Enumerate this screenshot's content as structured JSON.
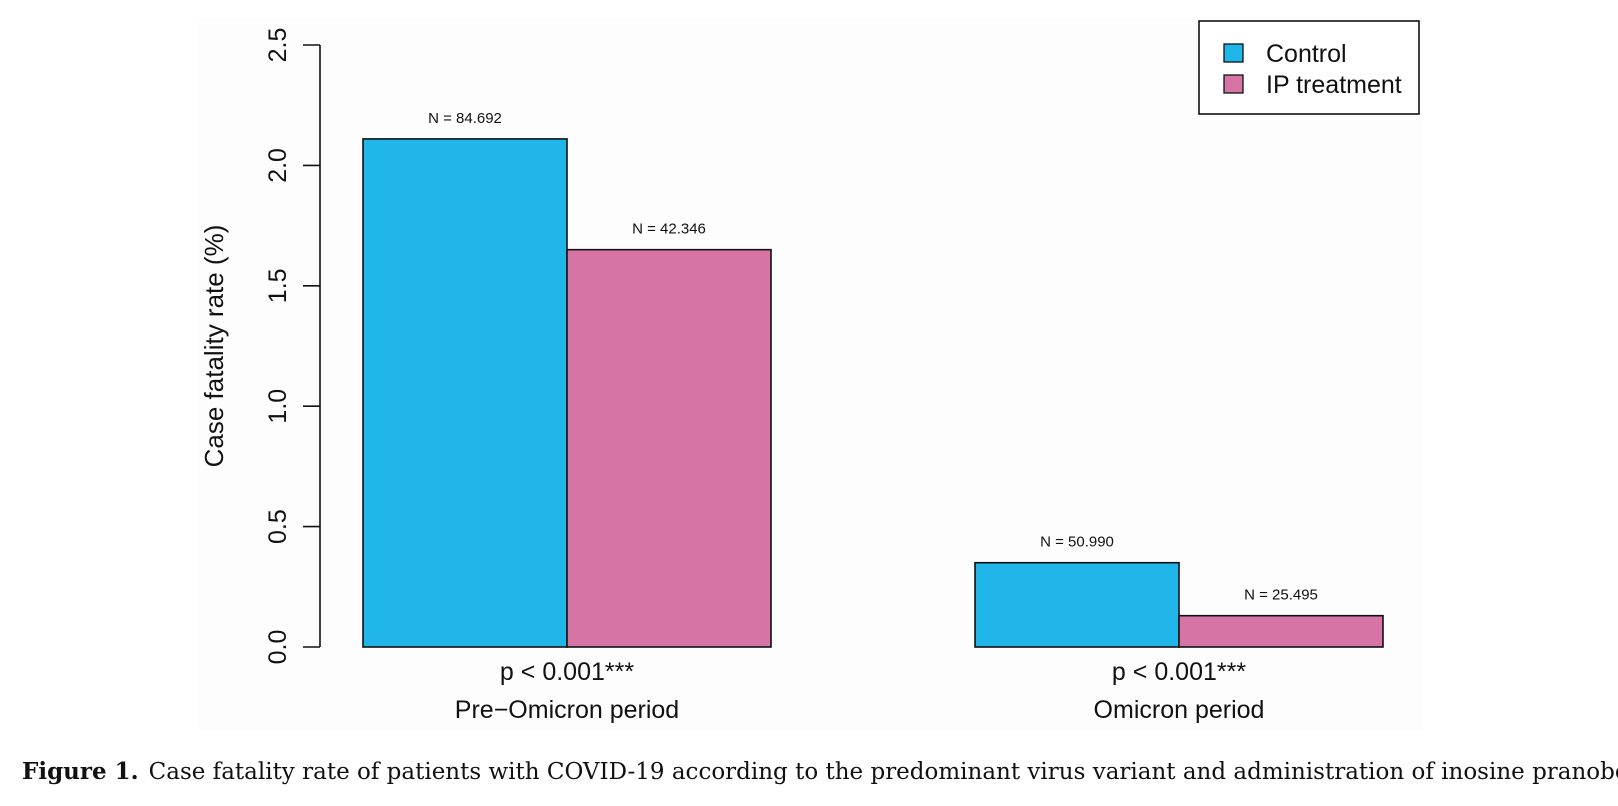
{
  "chart_data": {
    "type": "bar",
    "title": "",
    "xlabel": "",
    "ylabel": "Case fatality rate (%)",
    "ylim": [
      0,
      2.5
    ],
    "yticks": [
      "0.0",
      "0.5",
      "1.0",
      "1.5",
      "2.0",
      "2.5"
    ],
    "grid": false,
    "legend_position": "top-right",
    "categories": [
      "Pre−Omicron period",
      "Omicron period"
    ],
    "series": [
      {
        "name": "Control",
        "color": "#21b6ea",
        "values": [
          2.11,
          0.35
        ],
        "labels": [
          "N = 84.692",
          "N = 50.990"
        ]
      },
      {
        "name": "IP treatment",
        "color": "#d674a6",
        "values": [
          1.65,
          0.13
        ],
        "labels": [
          "N = 42.346",
          "N = 25.495"
        ]
      }
    ],
    "annotations": [
      "p < 0.001***",
      "p < 0.001***"
    ]
  },
  "caption": {
    "label": "Figure 1.",
    "text": "Case fatality rate of patients with COVID-19 according to the predominant virus variant and administration of inosine pranobex."
  }
}
